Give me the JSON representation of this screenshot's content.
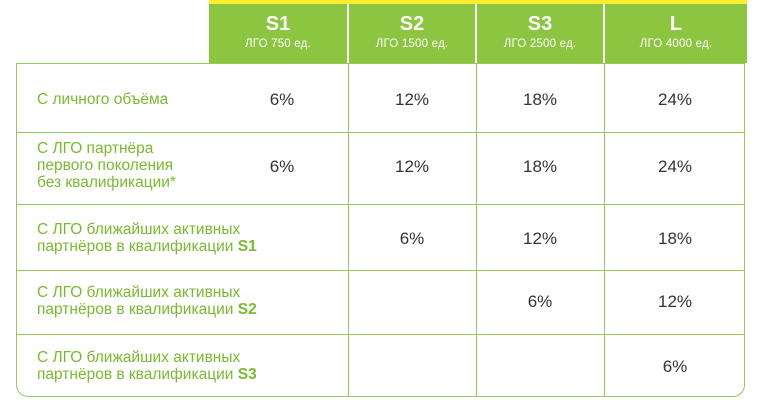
{
  "columns": [
    {
      "level": "S1",
      "sub": "ЛГО 750 ед."
    },
    {
      "level": "S2",
      "sub": "ЛГО 1500 ед."
    },
    {
      "level": "S3",
      "sub": "ЛГО 2500 ед."
    },
    {
      "level": "L",
      "sub": "ЛГО 4000 ед."
    }
  ],
  "rows": [
    {
      "label_lines": [
        "С личного объёма"
      ],
      "values": [
        "6%",
        "12%",
        "18%",
        "24%"
      ]
    },
    {
      "label_lines": [
        "С ЛГО партнёра",
        "первого поколения",
        "без квалификации*"
      ],
      "values": [
        "6%",
        "12%",
        "18%",
        "24%"
      ]
    },
    {
      "label_lines": [
        "С ЛГО ближайших активных",
        "партнёров в квалификации"
      ],
      "label_bold": "S1",
      "values": [
        "",
        "6%",
        "12%",
        "18%"
      ]
    },
    {
      "label_lines": [
        "С ЛГО ближайших активных",
        "партнёров в квалификации"
      ],
      "label_bold": "S2",
      "values": [
        "",
        "",
        "6%",
        "12%"
      ]
    },
    {
      "label_lines": [
        "С ЛГО ближайших активных",
        "партнёров в квалификации"
      ],
      "label_bold": "S3",
      "values": [
        "",
        "",
        "",
        "6%"
      ]
    }
  ],
  "colors": {
    "header_green": "#8cc540",
    "label_green": "#79ba2f",
    "border_green": "#95c95a",
    "top_line_yellow": "#ffed2e"
  }
}
